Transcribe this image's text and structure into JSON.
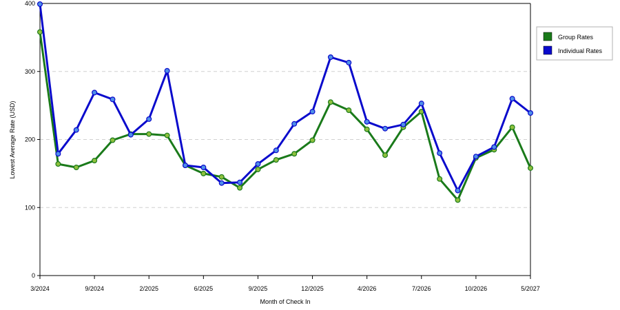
{
  "chart_data": {
    "type": "line",
    "title": "",
    "xlabel": "Month of Check In",
    "ylabel": "Lowest Average Rate (USD)",
    "ylim": [
      0,
      400
    ],
    "yticks": [
      0,
      100,
      200,
      300,
      400
    ],
    "grid": "horizontal dashed",
    "legend_position": "top-right",
    "x_tick_labels": [
      "3/2024",
      "9/2024",
      "2/2025",
      "6/2025",
      "9/2025",
      "12/2025",
      "4/2026",
      "7/2026",
      "10/2026",
      "5/2027"
    ],
    "x_tick_positions": [
      0,
      3,
      6,
      9,
      12,
      15,
      18,
      21,
      24,
      27
    ],
    "series": [
      {
        "name": "Group Rates",
        "color": "#1a7a1a",
        "values": [
          358,
          164,
          159,
          169,
          199,
          208,
          208,
          206,
          162,
          150,
          145,
          129,
          156,
          170,
          179,
          199,
          255,
          243,
          215,
          177,
          218,
          241,
          142,
          111,
          173,
          185,
          218,
          158
        ]
      },
      {
        "name": "Individual Rates",
        "color": "#0a0acc",
        "values": [
          399,
          179,
          214,
          269,
          259,
          207,
          230,
          301,
          162,
          159,
          136,
          137,
          164,
          184,
          223,
          241,
          321,
          313,
          226,
          216,
          222,
          253,
          180,
          125,
          175,
          189,
          260,
          239
        ]
      }
    ]
  }
}
